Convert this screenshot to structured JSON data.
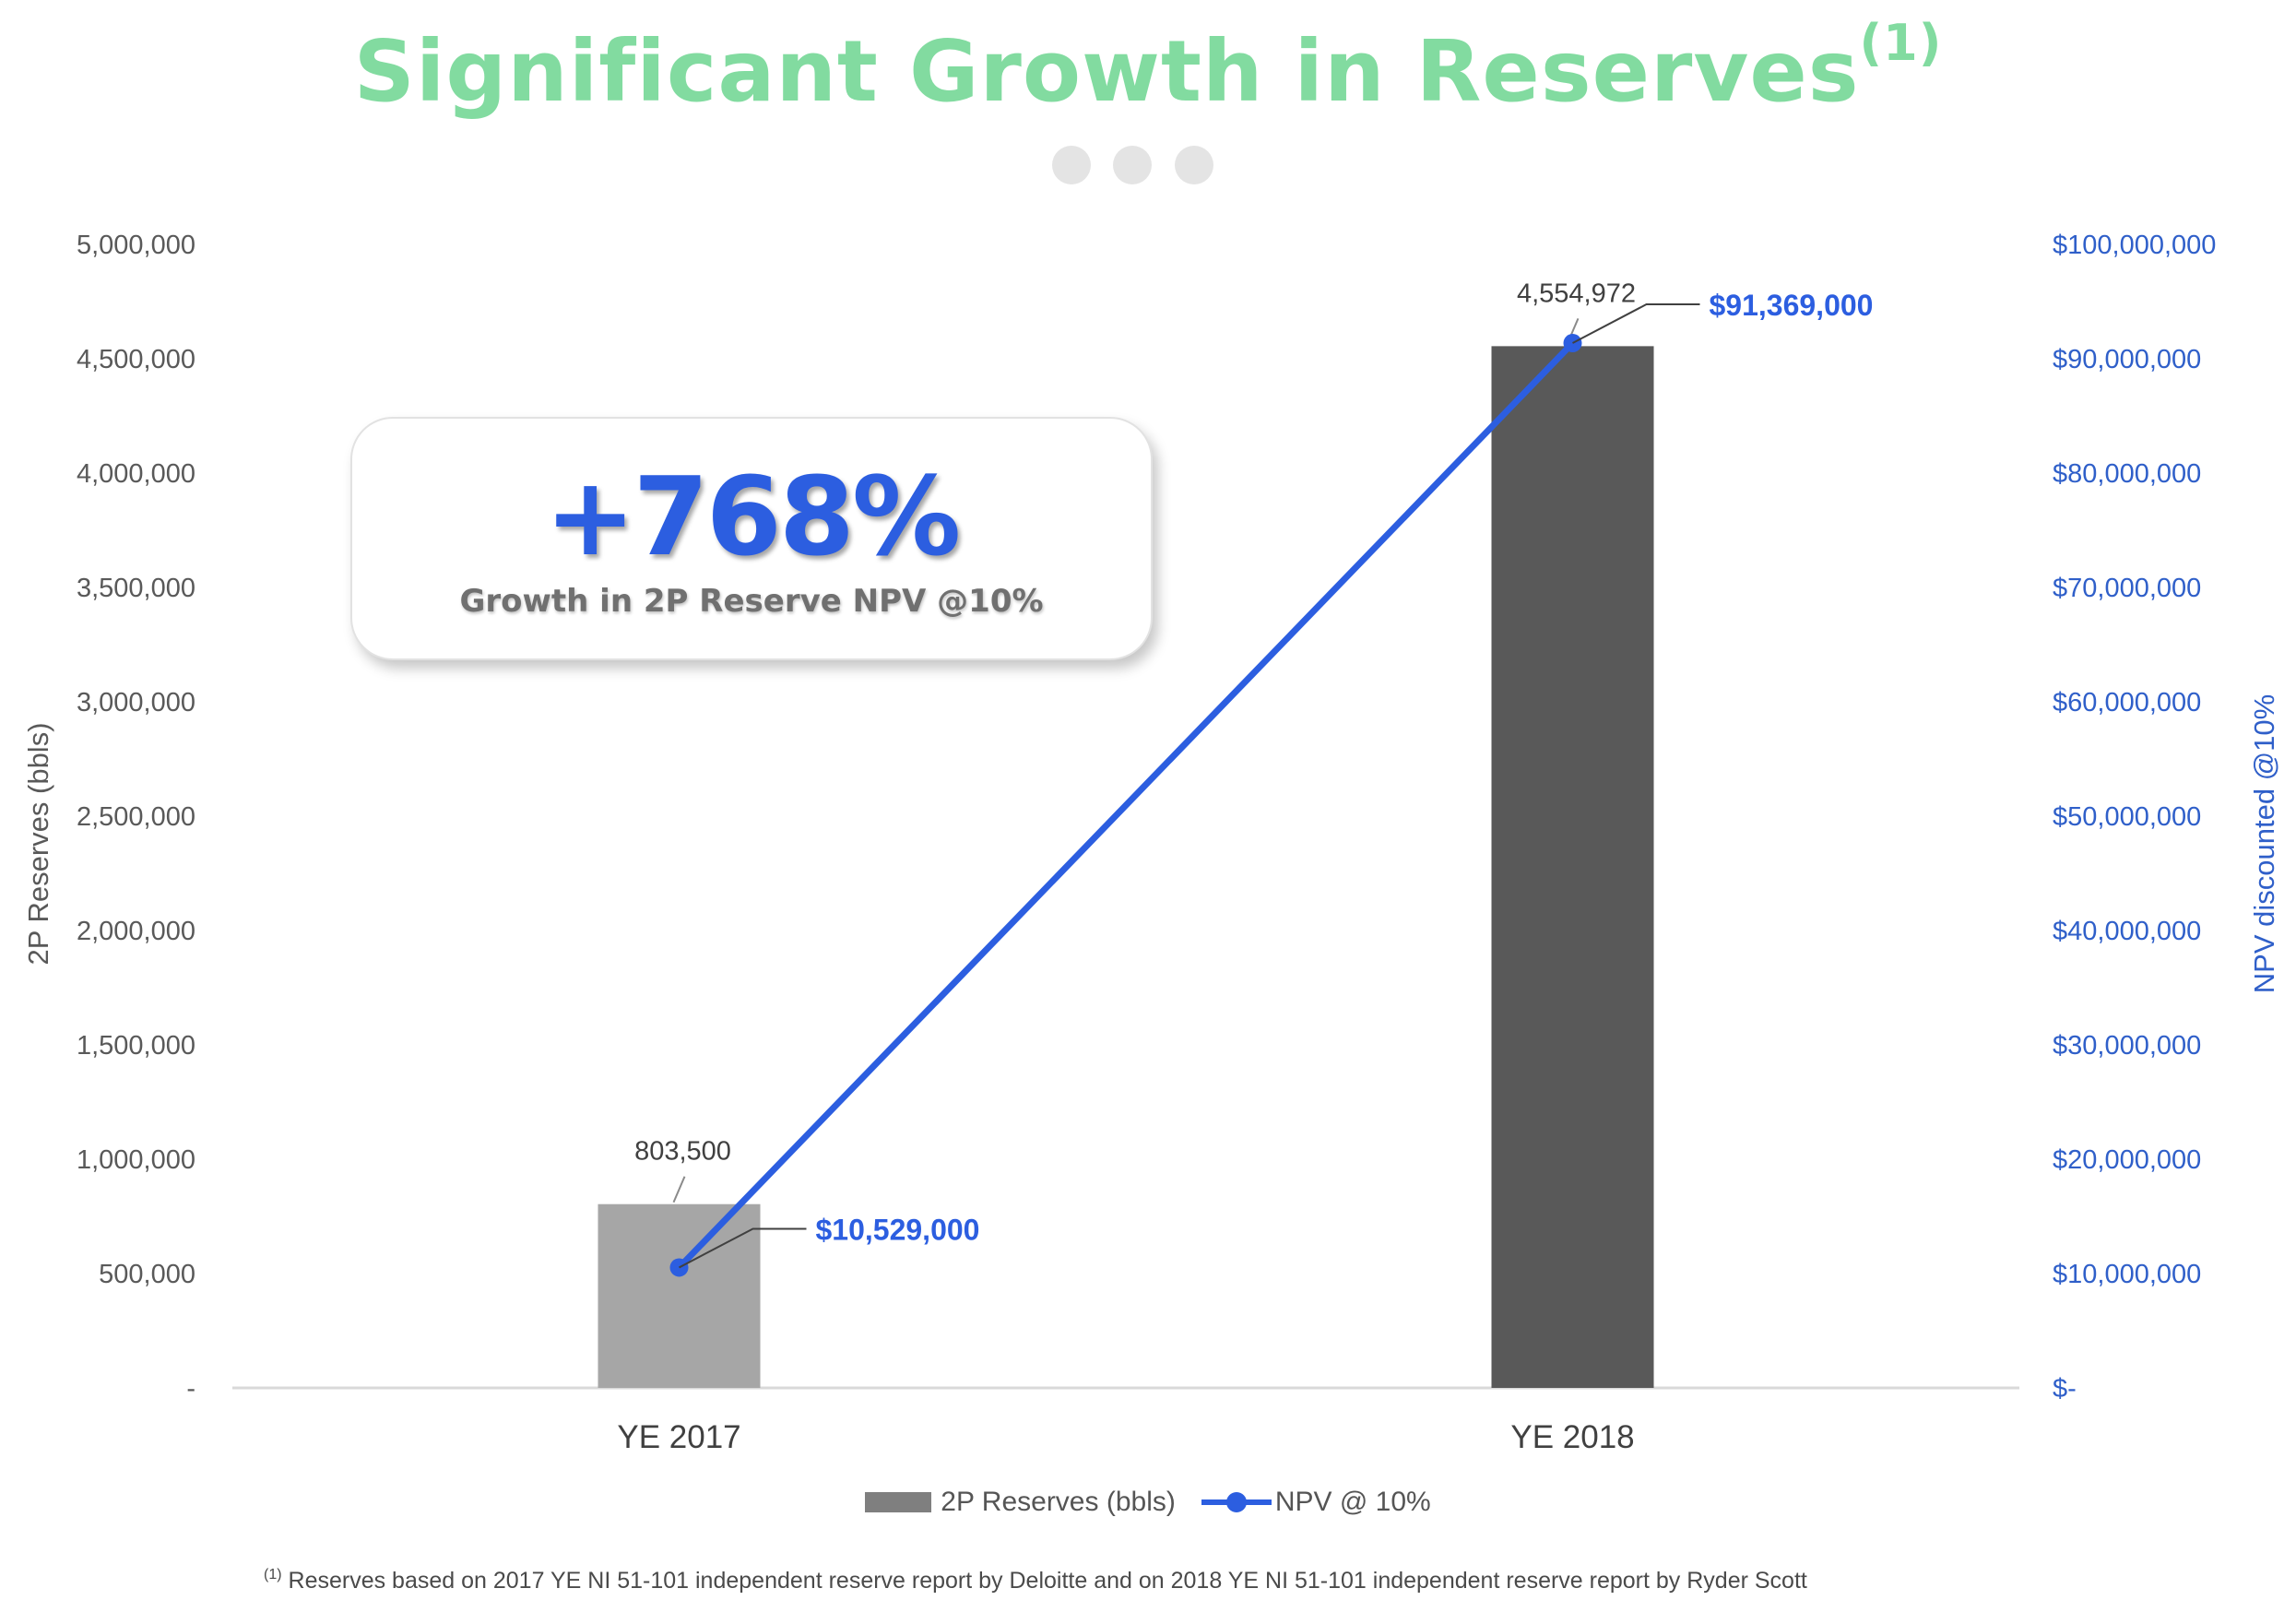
{
  "header": {
    "title": "Significant Growth in Reserves",
    "title_sup": "(1)"
  },
  "callout": {
    "value": "+768%",
    "label": "Growth in 2P Reserve NPV @10%"
  },
  "chart_data": {
    "type": "bar",
    "categories": [
      "YE 2017",
      "YE 2018"
    ],
    "series": [
      {
        "name": "2P Reserves (bbls)",
        "kind": "bar",
        "axis": "left",
        "values": [
          803500,
          4554972
        ],
        "data_labels": [
          "803,500",
          "4,554,972"
        ],
        "colors": [
          "#a6a6a6",
          "#595959"
        ]
      },
      {
        "name": "NPV @ 10%",
        "kind": "line",
        "axis": "right",
        "values": [
          10529000,
          91369000
        ],
        "data_labels": [
          "$10,529,000",
          "$91,369,000"
        ],
        "color": "#2c5ee0"
      }
    ],
    "ylabel": "2P Reserves (bbls)",
    "ylabel_right": "NPV discounted @10%",
    "ylim": [
      0,
      5000000
    ],
    "ylim_right": [
      0,
      100000000
    ],
    "yticks": [
      "-",
      "500,000",
      "1,000,000",
      "1,500,000",
      "2,000,000",
      "2,500,000",
      "3,000,000",
      "3,500,000",
      "4,000,000",
      "4,500,000",
      "5,000,000"
    ],
    "yticks_right": [
      "$-",
      "$10,000,000",
      "$20,000,000",
      "$30,000,000",
      "$40,000,000",
      "$50,000,000",
      "$60,000,000",
      "$70,000,000",
      "$80,000,000",
      "$90,000,000",
      "$100,000,000"
    ],
    "grid": false,
    "legend_position": "bottom"
  },
  "colors": {
    "title": "#82dba0",
    "accent_blue": "#2c5ee0",
    "axis_text": "#595959"
  },
  "footnote": {
    "marker": "(1)",
    "text": "Reserves based on 2017 YE NI 51-101 independent reserve report by Deloitte and on 2018 YE NI 51-101 independent reserve report by Ryder Scott"
  }
}
